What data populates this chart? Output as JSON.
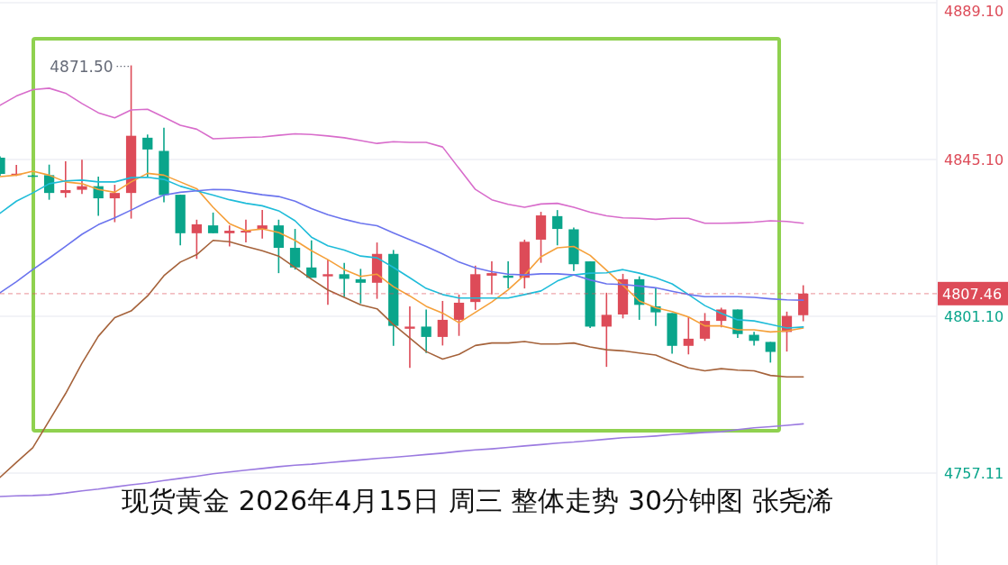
{
  "chart_data": {
    "type": "candlestick",
    "title": "现货黄金 2026年4月15日 周三 整体走势 30分钟图 张尧浠",
    "categories": [
      null,
      null,
      null,
      null,
      null,
      null,
      null,
      null,
      null,
      null,
      null,
      null,
      null,
      null,
      null,
      null,
      null,
      null,
      null,
      null,
      null,
      null,
      null,
      null,
      null,
      null,
      null,
      null,
      null,
      null,
      null,
      null,
      null,
      null,
      null,
      null,
      null,
      null,
      null,
      null,
      null,
      null,
      null,
      null,
      null,
      null,
      null,
      null,
      null,
      null,
      null,
      null,
      null,
      null,
      null,
      null,
      null,
      null
    ],
    "ohlc": [
      [
        4845.6,
        4846.0,
        4840.5,
        4841.05
      ],
      [
        4840.9,
        4843.6,
        4840.5,
        4841.1
      ],
      [
        4840.6,
        4840.8,
        4840.2,
        4840.4
      ],
      [
        4840.7,
        4843.65,
        4833.8,
        4835.7
      ],
      [
        4835.7,
        4844.6,
        4834.4,
        4836.5
      ],
      [
        4836.6,
        4845.0,
        4835.4,
        4837.6
      ],
      [
        4837.6,
        4840.3,
        4829.3,
        4834.2
      ],
      [
        4834.2,
        4838.0,
        4827.5,
        4835.7
      ],
      [
        4835.7,
        4871.5,
        4828.5,
        4851.75
      ],
      [
        4851.2,
        4852.1,
        4840.1,
        4847.9
      ],
      [
        4847.5,
        4854.0,
        4833.1,
        4835.1
      ],
      [
        4835.2,
        4835.2,
        4821.0,
        4824.4
      ],
      [
        4824.4,
        4828.2,
        4817.2,
        4826.9
      ],
      [
        4826.6,
        4830.2,
        4824.4,
        4824.4
      ],
      [
        4824.4,
        4826.6,
        4820.7,
        4825.1
      ],
      [
        4824.6,
        4828.2,
        4821.8,
        4825.1
      ],
      [
        4825.6,
        4830.9,
        4822.9,
        4826.6
      ],
      [
        4826.6,
        4828.2,
        4813.2,
        4820.3
      ],
      [
        4820.3,
        4825.6,
        4814.2,
        4814.8
      ],
      [
        4814.8,
        4822.4,
        4811.9,
        4811.9
      ],
      [
        4812.3,
        4817.0,
        4804.3,
        4812.9
      ],
      [
        4812.9,
        4816.1,
        4806.6,
        4811.6
      ],
      [
        4811.5,
        4814.4,
        4804.7,
        4810.5
      ],
      [
        4810.5,
        4821.8,
        4806.0,
        4818.6
      ],
      [
        4818.6,
        4819.7,
        4792.8,
        4798.4
      ],
      [
        4797.6,
        4803.9,
        4786.6,
        4798.2
      ],
      [
        4798.2,
        4803.0,
        4790.8,
        4795.3
      ],
      [
        4795.3,
        4805.4,
        4792.9,
        4800.1
      ],
      [
        4800.1,
        4807.2,
        4795.6,
        4804.9
      ],
      [
        4805.1,
        4815.3,
        4802.9,
        4812.9
      ],
      [
        4812.5,
        4816.5,
        4807.2,
        4813.2
      ],
      [
        4812.5,
        4816.5,
        4808.9,
        4811.9
      ],
      [
        4811.9,
        4822.6,
        4808.9,
        4822.0
      ],
      [
        4822.6,
        4830.4,
        4816.1,
        4829.4
      ],
      [
        4829.2,
        4830.9,
        4821.0,
        4825.6
      ],
      [
        4825.5,
        4826.0,
        4813.8,
        4815.7
      ],
      [
        4816.5,
        4816.5,
        4797.8,
        4798.2
      ],
      [
        4798.2,
        4807.7,
        4786.9,
        4801.5
      ],
      [
        4801.6,
        4813.0,
        4800.5,
        4811.5
      ],
      [
        4811.5,
        4812.3,
        4800.1,
        4804.3
      ],
      [
        4803.9,
        4808.9,
        4798.4,
        4802.2
      ],
      [
        4802.0,
        4802.0,
        4790.6,
        4792.8
      ],
      [
        4792.8,
        4800.9,
        4790.4,
        4794.8
      ],
      [
        4794.8,
        4802.0,
        4794.2,
        4799.8
      ],
      [
        4799.8,
        4803.5,
        4798.0,
        4803.0
      ],
      [
        4803.0,
        4803.0,
        4795.0,
        4796.1
      ],
      [
        4795.9,
        4796.7,
        4792.9,
        4794.2
      ],
      [
        4793.9,
        4793.9,
        4788.1,
        4791.1
      ],
      [
        4796.7,
        4802.4,
        4791.2,
        4801.2
      ],
      [
        4801.4,
        4809.8,
        4799.7,
        4807.46
      ],
      null,
      null,
      null,
      null,
      null,
      null,
      null,
      null
    ],
    "colors": [
      "#0aa58b",
      "#dd4b58",
      "#0aa58b",
      "#0aa58b",
      "#dd4b58",
      "#dd4b58",
      "#0aa58b",
      "#dd4b58",
      "#dd4b58",
      "#0aa58b",
      "#0aa58b",
      "#0aa58b",
      "#dd4b58",
      "#0aa58b",
      "#dd4b58",
      "#dd4b58",
      "#dd4b58",
      "#0aa58b",
      "#0aa58b",
      "#0aa58b",
      "#dd4b58",
      "#0aa58b",
      "#0aa58b",
      "#dd4b58",
      "#0aa58b",
      "#dd4b58",
      "#0aa58b",
      "#dd4b58",
      "#dd4b58",
      "#dd4b58",
      "#dd4b58",
      "#0aa58b",
      "#dd4b58",
      "#dd4b58",
      "#0aa58b",
      "#0aa58b",
      "#0aa58b",
      "#dd4b58",
      "#dd4b58",
      "#0aa58b",
      "#0aa58b",
      "#0aa58b",
      "#dd4b58",
      "#dd4b58",
      "#dd4b58",
      "#0aa58b",
      "#0aa58b",
      "#0aa58b",
      "#dd4b58",
      "#dd4b58",
      null,
      null,
      null,
      null,
      null,
      null,
      null,
      null
    ],
    "series": [
      {
        "type": "line",
        "color": "#d86ccb",
        "values": [
          4860.3,
          4862.9,
          4864.7,
          4865.1,
          4863.7,
          4860.8,
          4858.2,
          4856.8,
          4859.0,
          4859.2,
          4857.0,
          4854.7,
          4853.6,
          4850.9,
          4851.1,
          4851.3,
          4851.4,
          4851.9,
          4852.3,
          4852.1,
          4851.7,
          4851.2,
          4850.4,
          4849.6,
          4850.1,
          4849.9,
          4849.9,
          4848.6,
          4842.6,
          4836.7,
          4833.8,
          4832.5,
          4831.7,
          4832.6,
          4832.8,
          4831.7,
          4830.3,
          4829.3,
          4828.7,
          4828.6,
          4828.3,
          4828.6,
          4828.6,
          4827.2,
          4827.2,
          4827.3,
          4827.5,
          4827.9,
          4827.7,
          4827.2,
          null,
          null,
          null,
          null,
          null,
          null,
          null,
          null
        ]
      },
      {
        "type": "line",
        "color": "#f5a03a",
        "values": [
          4840.3,
          4840.7,
          4841.8,
          4840.7,
          4838.8,
          4838.3,
          4836.7,
          4835.9,
          4838.8,
          4841.2,
          4840.7,
          4838.8,
          4836.9,
          4831.7,
          4827.1,
          4825.1,
          4825.6,
          4824.6,
          4822.4,
          4819.5,
          4817.0,
          4814.2,
          4812.3,
          4812.9,
          4809.4,
          4806.8,
          4803.9,
          4802.0,
          4799.3,
          4802.2,
          4805.1,
          4808.5,
          4812.7,
          4817.8,
          4820.3,
          4820.7,
          4818.2,
          4814.0,
          4809.8,
          4805.4,
          4803.5,
          4802.4,
          4800.9,
          4798.4,
          4798.4,
          4797.3,
          4797.3,
          4796.7,
          4797.0,
          4797.8,
          null,
          null,
          null,
          null,
          null,
          null,
          null,
          null
        ]
      },
      {
        "type": "line",
        "color": "#1fbcd9",
        "values": [
          4830.0,
          4833.4,
          4835.7,
          4838.3,
          4839.1,
          4839.3,
          4838.8,
          4838.8,
          4840.0,
          4840.1,
          4839.5,
          4837.6,
          4836.3,
          4835.1,
          4833.8,
          4832.8,
          4832.1,
          4830.7,
          4827.9,
          4823.3,
          4820.9,
          4819.7,
          4818.0,
          4817.5,
          4814.8,
          4811.9,
          4808.9,
          4807.2,
          4806.2,
          4806.2,
          4806.2,
          4806.2,
          4807.2,
          4808.2,
          4811.0,
          4812.7,
          4813.2,
          4813.3,
          4814.2,
          4813.2,
          4811.9,
          4810.2,
          4807.2,
          4804.1,
          4801.9,
          4800.1,
          4799.8,
          4798.8,
          4797.8,
          4798.1,
          null,
          null,
          null,
          null,
          null,
          null,
          null,
          null
        ]
      },
      {
        "type": "line",
        "color": "#6b74ee",
        "values": [
          4807.7,
          4810.8,
          4814.2,
          4817.4,
          4820.7,
          4824.1,
          4826.8,
          4828.7,
          4830.9,
          4833.2,
          4835.1,
          4835.9,
          4836.3,
          4836.7,
          4836.6,
          4835.9,
          4835.2,
          4834.7,
          4833.4,
          4831.3,
          4829.6,
          4828.3,
          4827.2,
          4826.5,
          4824.5,
          4822.6,
          4820.7,
          4818.6,
          4816.3,
          4814.7,
          4813.6,
          4812.9,
          4812.7,
          4813.0,
          4813.0,
          4812.7,
          4811.3,
          4810.2,
          4810.0,
          4809.6,
          4809.1,
          4808.1,
          4807.2,
          4806.6,
          4806.6,
          4806.6,
          4806.4,
          4806.0,
          4805.7,
          4805.6,
          null,
          null,
          null,
          null,
          null,
          null,
          null,
          null
        ]
      },
      {
        "type": "line",
        "color": "#a5623a",
        "values": [
          4755.9,
          4760.1,
          4764.2,
          4771.8,
          4779.4,
          4787.9,
          4795.5,
          4800.7,
          4802.6,
          4806.8,
          4812.5,
          4816.3,
          4818.4,
          4822.4,
          4822.0,
          4820.7,
          4819.5,
          4818.0,
          4814.8,
          4811.5,
          4808.5,
          4806.4,
          4804.3,
          4803.2,
          4798.8,
          4795.0,
          4791.2,
          4789.1,
          4790.4,
          4792.9,
          4793.6,
          4793.6,
          4794.0,
          4793.3,
          4793.3,
          4793.6,
          4792.5,
          4791.7,
          4791.4,
          4790.8,
          4790.2,
          4788.3,
          4786.6,
          4785.8,
          4786.4,
          4786.0,
          4785.8,
          4784.5,
          4784.1,
          4784.1,
          null,
          null,
          null,
          null,
          null,
          null,
          null,
          null
        ]
      },
      {
        "type": "line",
        "color": "#9b7ae0",
        "values": [
          4750.5,
          4750.7,
          4750.8,
          4751.0,
          4751.5,
          4752.1,
          4752.6,
          4753.2,
          4753.8,
          4754.3,
          4755.0,
          4755.6,
          4756.2,
          4756.9,
          4757.4,
          4757.9,
          4758.4,
          4758.9,
          4759.3,
          4759.6,
          4760.0,
          4760.4,
          4760.8,
          4761.2,
          4761.5,
          4761.9,
          4762.3,
          4762.7,
          4763.2,
          4763.6,
          4763.9,
          4764.3,
          4764.7,
          4765.1,
          4765.5,
          4765.8,
          4766.2,
          4766.6,
          4767.0,
          4767.2,
          4767.5,
          4767.9,
          4768.2,
          4768.5,
          4768.7,
          4769.3,
          4769.8,
          4770.1,
          4770.5,
          4770.9,
          null,
          null,
          null,
          null,
          null,
          null,
          null,
          null
        ]
      }
    ],
    "ylim": [
      4731.3,
      4889.85
    ],
    "yticks": [
      {
        "value": 4757.11,
        "label": "4757.11"
      },
      {
        "value": 4801.1,
        "label": "4801.10"
      },
      {
        "value": 4845.1,
        "label": "4845.10"
      },
      {
        "value": 4889.1,
        "label": "4889.10"
      }
    ],
    "ref_lines": [
      {
        "axis": "y",
        "value": 4807.46,
        "label": "4807.46",
        "color": "#dd4b58",
        "line_style": "dashed"
      }
    ],
    "annotations": [
      "4871.50"
    ],
    "grid": "y"
  }
}
